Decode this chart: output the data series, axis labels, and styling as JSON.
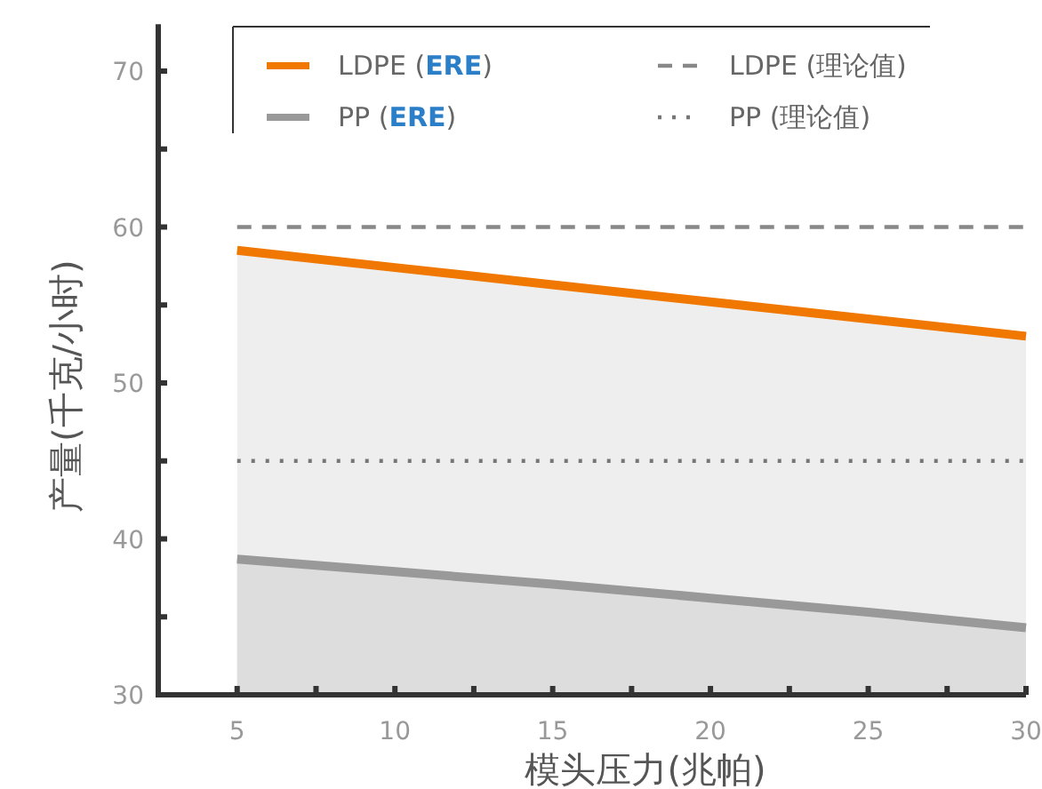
{
  "chart_data": {
    "type": "area",
    "xlabel": "模头压力(兆帕)",
    "ylabel": "产量(千克/小时)",
    "xlim": [
      2.5,
      30
    ],
    "ylim": [
      30,
      73
    ],
    "xticks": [
      5,
      {
        "value": 7.5,
        "label": null
      },
      10,
      {
        "value": 12.5,
        "label": null
      },
      15,
      {
        "value": 17.5,
        "label": null
      },
      20,
      {
        "value": 22.5,
        "label": null
      },
      25,
      {
        "value": 27.5,
        "label": null
      },
      30
    ],
    "yticks": [
      30,
      {
        "value": 35,
        "label": null
      },
      40,
      {
        "value": 45,
        "label": null
      },
      50,
      {
        "value": 55,
        "label": null
      },
      60,
      {
        "value": 65,
        "label": null
      },
      70
    ],
    "x": [
      5,
      10,
      15,
      20,
      25,
      30
    ],
    "series": [
      {
        "name": "LDPE (**ERE**)",
        "color": "#f07800",
        "values": [
          58.5,
          57.4,
          56.3,
          55.2,
          54.1,
          53.0
        ]
      },
      {
        "name": "PP (**ERE**)",
        "color": "#999999",
        "values": [
          38.7,
          37.9,
          37.1,
          36.2,
          35.3,
          34.3
        ]
      }
    ],
    "ref_lines": [
      {
        "axis": "y",
        "value": 60,
        "label": "LDPE (理论值)",
        "color": "#888888",
        "line_style": "dashed"
      },
      {
        "axis": "y",
        "value": 45,
        "label": "PP (理论值)",
        "color": "#777777",
        "line_style": "dotted"
      }
    ],
    "legend": "top",
    "grid": false,
    "marker": "none"
  }
}
